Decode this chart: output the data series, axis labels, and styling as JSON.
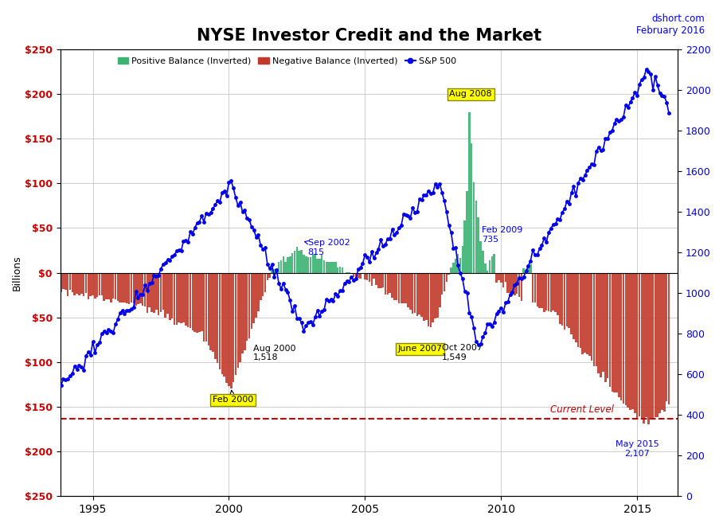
{
  "title": "NYSE Investor Credit and the Market",
  "subtitle_right": "dshort.com\nFebruary 2016",
  "ylabel_left": "Billions",
  "current_level_value": 163,
  "current_level_label": "Current Level",
  "ylim_left_top": 250,
  "ylim_left_bottom": -250,
  "ylim_right_bottom": 0,
  "ylim_right_top": 2200,
  "colors": {
    "positive_bar": "#3CB371",
    "negative_bar": "#C0392B",
    "sp500_line": "#0000EE",
    "sp500_dot": "#0000EE",
    "current_level": "#CC0000",
    "grid": "#BBBBBB",
    "background": "#FFFFFF",
    "annotation_box_bg": "#FFFF00",
    "annotation_box_edge": "#888800",
    "left_tick": "#CC0000",
    "right_tick": "#0000EE"
  },
  "legend_entries": [
    {
      "label": "Positive Balance (Inverted)",
      "color": "#3CB371"
    },
    {
      "label": "Negative Balance (Inverted)",
      "color": "#C0392B"
    },
    {
      "label": "S&P 500",
      "color": "#0000EE"
    }
  ],
  "x_ticks": [
    1995,
    2000,
    2005,
    2010,
    2015
  ],
  "left_ticks": [
    250,
    200,
    150,
    100,
    50,
    0,
    -50,
    -100,
    -150,
    -200,
    -250
  ],
  "left_labels": [
    "$250",
    "$200",
    "$150",
    "$100",
    "$50",
    "$0",
    "$50",
    "$100",
    "$150",
    "$200",
    "$250"
  ],
  "right_ticks": [
    0,
    200,
    400,
    600,
    800,
    1000,
    1200,
    1400,
    1600,
    1800,
    2000,
    2200
  ]
}
